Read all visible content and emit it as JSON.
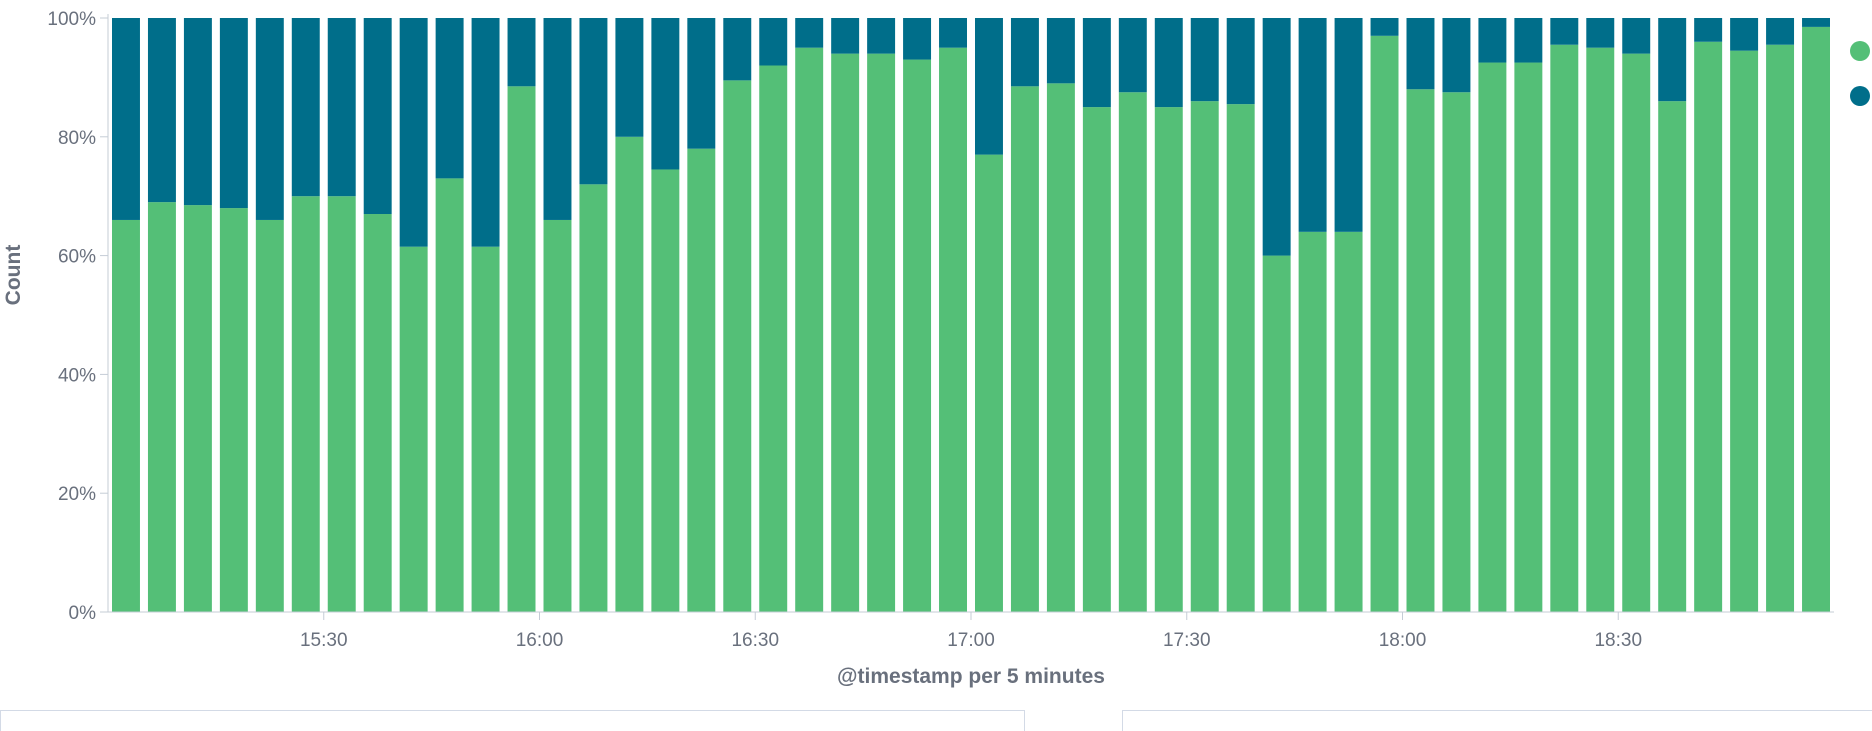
{
  "chart_data": {
    "type": "bar",
    "stacked": true,
    "percentage_mode": true,
    "xlabel": "@timestamp per 5 minutes",
    "ylabel": "Count",
    "ylim": [
      0,
      100
    ],
    "yticks": [
      "0%",
      "20%",
      "40%",
      "60%",
      "80%",
      "100%"
    ],
    "x_tick_labels": [
      "15:30",
      "16:00",
      "16:30",
      "17:00",
      "17:30",
      "18:00",
      "18:30"
    ],
    "x_tick_after_bar": [
      5.5,
      11.5,
      17.5,
      23.5,
      29.5,
      35.5,
      41.5
    ],
    "bar_count": 48,
    "legend": {
      "position": "right"
    },
    "colors": [
      "#54bf77",
      "#006e8a"
    ],
    "series": [
      {
        "values": [
          66,
          69,
          68.5,
          68,
          66,
          70,
          70,
          67,
          61.5,
          73,
          61.5,
          88.5,
          66,
          72,
          80,
          74.5,
          78,
          89.5,
          92,
          95,
          94,
          94,
          93,
          95,
          77,
          88.5,
          89,
          85,
          87.5,
          85,
          86,
          85.5,
          60,
          64,
          64,
          97,
          88,
          87.5,
          92.5,
          92.5,
          95.5,
          95,
          94,
          86,
          96,
          94.5,
          95.5,
          98.5
        ]
      },
      {
        "values": [
          34,
          31,
          31.5,
          32,
          34,
          30,
          30,
          33,
          38.5,
          27,
          38.5,
          11.5,
          34,
          28,
          20,
          25.5,
          22,
          10.5,
          8,
          5,
          6,
          6,
          7,
          5,
          23,
          11.5,
          11,
          15,
          12.5,
          15,
          14,
          14.5,
          40,
          36,
          36,
          3,
          12,
          12.5,
          7.5,
          7.5,
          4.5,
          5,
          6,
          14,
          4,
          5.5,
          4.5,
          1.5
        ]
      }
    ]
  }
}
